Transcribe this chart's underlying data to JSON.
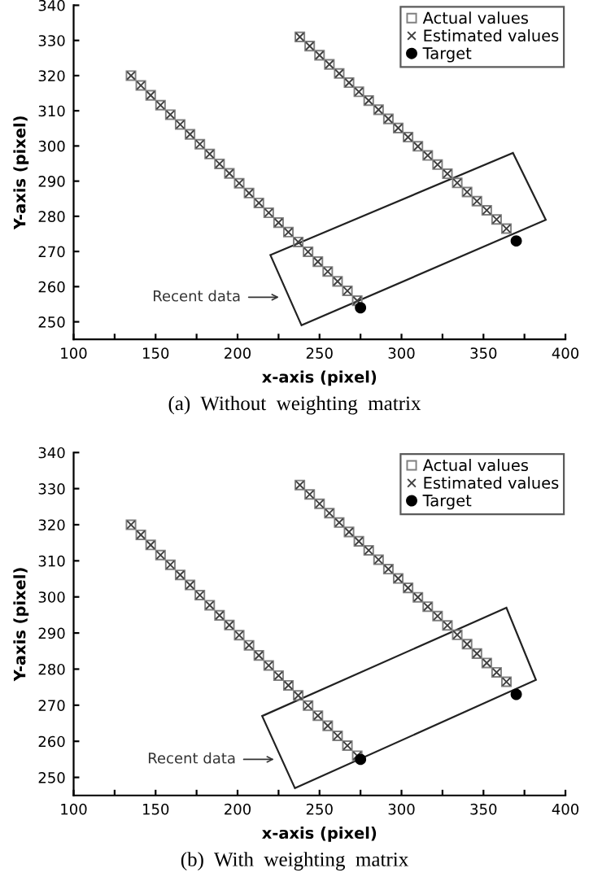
{
  "chart_data": [
    {
      "type": "scatter",
      "xlabel": "x-axis (pixel)",
      "ylabel": "Y-axis (pixel)",
      "annotations": [
        "Recent data",
        "(a)  Without  weighting  matrix"
      ],
      "xlim": [
        100,
        400
      ],
      "ylim": [
        245,
        340
      ],
      "xticks": [
        100,
        {
          "value": 125,
          "label": null
        },
        150,
        {
          "value": 175,
          "label": null
        },
        200,
        {
          "value": 225,
          "label": null
        },
        250,
        {
          "value": 275,
          "label": null
        },
        300,
        {
          "value": 325,
          "label": null
        },
        350,
        {
          "value": 375,
          "label": null
        },
        400
      ],
      "yticks": [
        250,
        260,
        270,
        280,
        290,
        300,
        310,
        320,
        330,
        340
      ],
      "grid": false,
      "legend": "top right",
      "series": [
        {
          "name": "Actual values",
          "color": "#808080",
          "marker": "square",
          "x": [
            135,
            141,
            147,
            153,
            159,
            165,
            171,
            177,
            183,
            189,
            195,
            201,
            207,
            213,
            219,
            225,
            231,
            237,
            243,
            249,
            255,
            261,
            267,
            273,
            238,
            244,
            250,
            256,
            262,
            268,
            274,
            280,
            286,
            292,
            298,
            304,
            310,
            316,
            322,
            328,
            334,
            340,
            346,
            352,
            358,
            364
          ],
          "values": [
            320,
            317.2,
            314.4,
            311.6,
            308.9,
            306.1,
            303.3,
            300.5,
            297.7,
            294.9,
            292.2,
            289.4,
            286.6,
            283.8,
            281.0,
            278.2,
            275.5,
            272.7,
            269.9,
            267.1,
            264.3,
            261.5,
            258.8,
            256.0,
            331,
            328.4,
            325.8,
            323.2,
            320.6,
            318.0,
            315.4,
            312.9,
            310.3,
            307.7,
            305.1,
            302.5,
            299.9,
            297.3,
            294.7,
            292.1,
            289.5,
            286.9,
            284.3,
            281.7,
            279.1,
            276.5
          ]
        },
        {
          "name": "Estimated values",
          "color": "#404040",
          "marker": "cross",
          "x": [
            135,
            141,
            147,
            153,
            159,
            165,
            171,
            177,
            183,
            189,
            195,
            201,
            207,
            213,
            219,
            225,
            231,
            237,
            243,
            249,
            255,
            261,
            267,
            273,
            238,
            244,
            250,
            256,
            262,
            268,
            274,
            280,
            286,
            292,
            298,
            304,
            310,
            316,
            322,
            328,
            334,
            340,
            346,
            352,
            358,
            364
          ],
          "values": [
            320,
            317.2,
            314.4,
            311.6,
            308.9,
            306.1,
            303.3,
            300.5,
            297.7,
            294.9,
            292.2,
            289.4,
            286.6,
            283.8,
            281.0,
            278.2,
            275.5,
            272.7,
            269.9,
            267.1,
            264.3,
            261.5,
            258.8,
            256.0,
            331,
            328.4,
            325.8,
            323.2,
            320.6,
            318.0,
            315.4,
            312.9,
            310.3,
            307.7,
            305.1,
            302.5,
            299.9,
            297.3,
            294.7,
            292.1,
            289.5,
            286.9,
            284.3,
            281.7,
            279.1,
            276.5
          ]
        },
        {
          "name": "Target",
          "color": "#000000",
          "marker": "circle",
          "x": [
            275,
            370
          ],
          "values": [
            254,
            273
          ]
        }
      ]
    },
    {
      "type": "scatter",
      "xlabel": "x-axis (pixel)",
      "ylabel": "Y-axis (pixel)",
      "annotations": [
        "Recent data",
        "(b)  With  weighting  matrix"
      ],
      "xlim": [
        100,
        400
      ],
      "ylim": [
        245,
        340
      ],
      "xticks": [
        100,
        {
          "value": 125,
          "label": null
        },
        150,
        {
          "value": 175,
          "label": null
        },
        200,
        {
          "value": 225,
          "label": null
        },
        250,
        {
          "value": 275,
          "label": null
        },
        300,
        {
          "value": 325,
          "label": null
        },
        350,
        {
          "value": 375,
          "label": null
        },
        400
      ],
      "yticks": [
        250,
        260,
        270,
        280,
        290,
        300,
        310,
        320,
        330,
        340
      ],
      "grid": false,
      "legend": "top right",
      "series": [
        {
          "name": "Actual values",
          "color": "#808080",
          "marker": "square",
          "x": [
            135,
            141,
            147,
            153,
            159,
            165,
            171,
            177,
            183,
            189,
            195,
            201,
            207,
            213,
            219,
            225,
            231,
            237,
            243,
            249,
            255,
            261,
            267,
            273,
            238,
            244,
            250,
            256,
            262,
            268,
            274,
            280,
            286,
            292,
            298,
            304,
            310,
            316,
            322,
            328,
            334,
            340,
            346,
            352,
            358,
            364
          ],
          "values": [
            320,
            317.2,
            314.4,
            311.6,
            308.9,
            306.1,
            303.3,
            300.5,
            297.7,
            294.9,
            292.2,
            289.4,
            286.6,
            283.8,
            281.0,
            278.2,
            275.5,
            272.7,
            269.9,
            267.1,
            264.3,
            261.5,
            258.8,
            256.0,
            331,
            328.4,
            325.8,
            323.2,
            320.6,
            318.0,
            315.4,
            312.9,
            310.3,
            307.7,
            305.1,
            302.5,
            299.9,
            297.3,
            294.7,
            292.1,
            289.5,
            286.9,
            284.3,
            281.7,
            279.1,
            276.5
          ]
        },
        {
          "name": "Estimated values",
          "color": "#404040",
          "marker": "cross",
          "x": [
            135,
            141,
            147,
            153,
            159,
            165,
            171,
            177,
            183,
            189,
            195,
            201,
            207,
            213,
            219,
            225,
            231,
            237,
            243,
            249,
            255,
            261,
            267,
            273,
            238,
            244,
            250,
            256,
            262,
            268,
            274,
            280,
            286,
            292,
            298,
            304,
            310,
            316,
            322,
            328,
            334,
            340,
            346,
            352,
            358,
            364
          ],
          "values": [
            320,
            317.2,
            314.4,
            311.6,
            308.9,
            306.1,
            303.3,
            300.5,
            297.7,
            294.9,
            292.2,
            289.4,
            286.6,
            283.8,
            281.0,
            278.2,
            275.5,
            272.7,
            269.9,
            267.1,
            264.3,
            261.5,
            258.8,
            256.0,
            331,
            328.4,
            325.8,
            323.2,
            320.6,
            318.0,
            315.4,
            312.9,
            310.3,
            307.7,
            305.1,
            302.5,
            299.9,
            297.3,
            294.7,
            292.1,
            289.5,
            286.9,
            284.3,
            281.7,
            279.1,
            276.5
          ]
        },
        {
          "name": "Target",
          "color": "#000000",
          "marker": "circle",
          "x": [
            275,
            370
          ],
          "values": [
            255,
            273
          ]
        }
      ]
    }
  ]
}
